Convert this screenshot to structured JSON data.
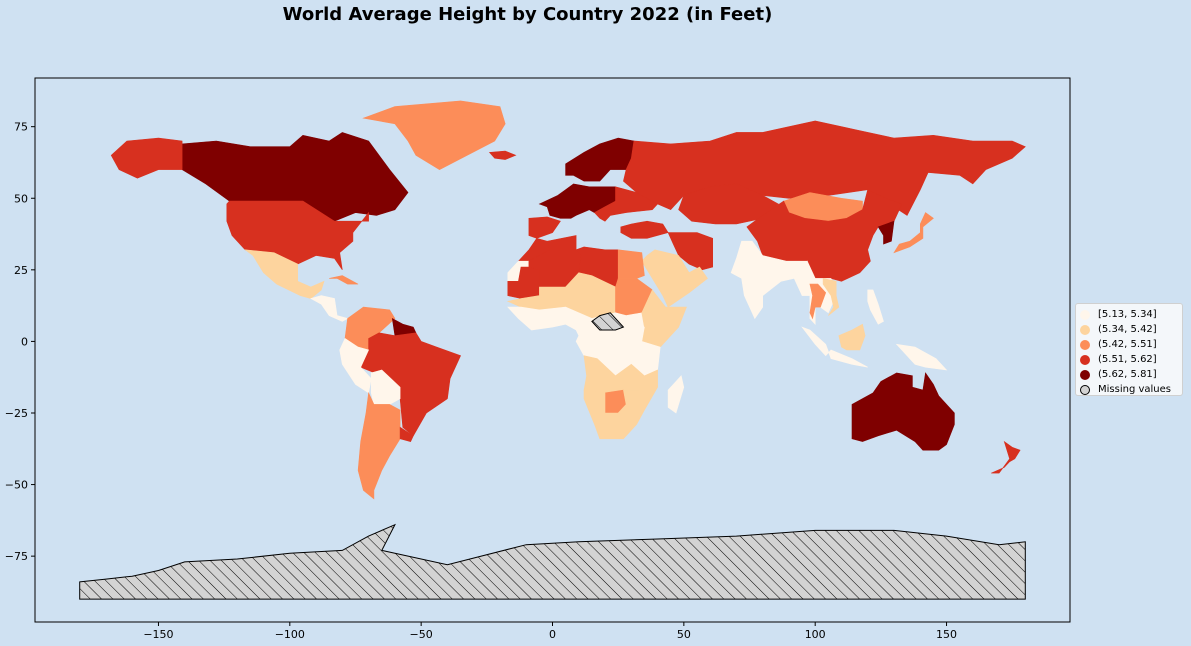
{
  "title": "World Average Height by Country 2022 (in Feet)",
  "map_data": {
    "type": "choropleth",
    "x_ticks": [
      -150,
      -100,
      -50,
      0,
      50,
      100,
      150
    ],
    "y_ticks": [
      75,
      50,
      25,
      0,
      -25,
      -50,
      -75
    ],
    "xlim": [
      -197,
      197
    ],
    "ylim": [
      -98,
      92
    ],
    "colors": {
      "class_1": "#fff6eb",
      "class_2": "#fdd49e",
      "class_3": "#fc8d59",
      "class_4": "#d7301f",
      "class_5": "#7f0000",
      "missing": "#d3d3d3",
      "ocean": "#cfe1f2"
    },
    "legend": [
      {
        "label": "[5.13, 5.34]",
        "color": "#fff6eb"
      },
      {
        "label": "(5.34, 5.42]",
        "color": "#fdd49e"
      },
      {
        "label": "(5.42, 5.51]",
        "color": "#fc8d59"
      },
      {
        "label": "(5.51, 5.62]",
        "color": "#d7301f"
      },
      {
        "label": "(5.62, 5.81]",
        "color": "#7f0000"
      },
      {
        "label": "Missing values",
        "color": "#d3d3d3"
      }
    ],
    "legend_position": "right",
    "regions": [
      {
        "name": "Canada",
        "class": "class_5"
      },
      {
        "name": "Alaska",
        "class": "class_4"
      },
      {
        "name": "United States",
        "class": "class_4"
      },
      {
        "name": "Greenland",
        "class": "class_3"
      },
      {
        "name": "Mexico",
        "class": "class_2"
      },
      {
        "name": "Central America",
        "class": "class_1"
      },
      {
        "name": "Cuba",
        "class": "class_3"
      },
      {
        "name": "Colombia & Venezuela",
        "class": "class_3"
      },
      {
        "name": "Guyana",
        "class": "class_5"
      },
      {
        "name": "Brazil",
        "class": "class_4"
      },
      {
        "name": "Ecuador & Peru",
        "class": "class_1"
      },
      {
        "name": "Bolivia",
        "class": "class_1"
      },
      {
        "name": "Argentina & Chile",
        "class": "class_3"
      },
      {
        "name": "Uruguay",
        "class": "class_4"
      },
      {
        "name": "Iceland",
        "class": "class_4"
      },
      {
        "name": "Scandinavia",
        "class": "class_5"
      },
      {
        "name": "Western Europe",
        "class": "class_5"
      },
      {
        "name": "Iberia",
        "class": "class_4"
      },
      {
        "name": "Eastern Europe",
        "class": "class_4"
      },
      {
        "name": "Russia",
        "class": "class_4"
      },
      {
        "name": "Kazakhstan",
        "class": "class_4"
      },
      {
        "name": "Mongolia",
        "class": "class_3"
      },
      {
        "name": "China",
        "class": "class_4"
      },
      {
        "name": "Korea",
        "class": "class_5"
      },
      {
        "name": "Japan",
        "class": "class_3"
      },
      {
        "name": "Turkey",
        "class": "class_4"
      },
      {
        "name": "Iran",
        "class": "class_4"
      },
      {
        "name": "Arabian Peninsula",
        "class": "class_2"
      },
      {
        "name": "India",
        "class": "class_1"
      },
      {
        "name": "Southeast Asia",
        "class": "class_1"
      },
      {
        "name": "Thailand",
        "class": "class_3"
      },
      {
        "name": "Vietnam",
        "class": "class_2"
      },
      {
        "name": "Indonesia",
        "class": "class_1"
      },
      {
        "name": "Borneo",
        "class": "class_2"
      },
      {
        "name": "Philippines",
        "class": "class_1"
      },
      {
        "name": "New Guinea",
        "class": "class_1"
      },
      {
        "name": "Morocco",
        "class": "class_4"
      },
      {
        "name": "Western Sahara",
        "class": "class_1"
      },
      {
        "name": "Mauritania",
        "class": "class_4"
      },
      {
        "name": "Algeria",
        "class": "class_4"
      },
      {
        "name": "Libya",
        "class": "class_4"
      },
      {
        "name": "Egypt",
        "class": "class_3"
      },
      {
        "name": "Sahel",
        "class": "class_2"
      },
      {
        "name": "Sudan",
        "class": "class_3"
      },
      {
        "name": "South Sudan",
        "class": "class_1"
      },
      {
        "name": "Horn of Africa",
        "class": "class_2"
      },
      {
        "name": "West Africa",
        "class": "class_1"
      },
      {
        "name": "Central Africa",
        "class": "class_1"
      },
      {
        "name": "Angola & Zambia",
        "class": "class_2"
      },
      {
        "name": "Botswana",
        "class": "class_3"
      },
      {
        "name": "South Africa",
        "class": "class_2"
      },
      {
        "name": "Madagascar",
        "class": "class_1"
      },
      {
        "name": "Australia",
        "class": "class_5"
      },
      {
        "name": "New Zealand",
        "class": "class_4"
      },
      {
        "name": "Central African Republic",
        "class": "missing"
      },
      {
        "name": "Antarctica",
        "class": "missing"
      }
    ]
  }
}
